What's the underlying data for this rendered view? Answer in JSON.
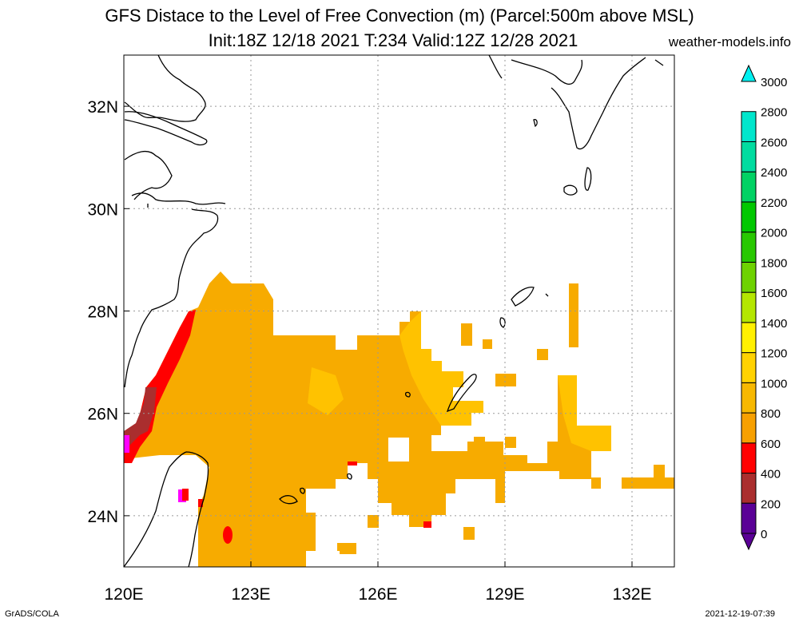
{
  "title_line1": "GFS Distace to the Level of Free Convection (m) (Parcel:500m above MSL)",
  "title_line2": "Init:18Z 12/18 2021 T:234 Valid:12Z 12/28 2021",
  "site": "weather-models.info",
  "footer_left": "GrADS/COLA",
  "footer_right": "2021-12-19-07:39",
  "map": {
    "lon_range": [
      120,
      133
    ],
    "lat_range": [
      23,
      33
    ],
    "lon_ticks": [
      {
        "value": 120,
        "label": "120E"
      },
      {
        "value": 123,
        "label": "123E"
      },
      {
        "value": 126,
        "label": "126E"
      },
      {
        "value": 129,
        "label": "129E"
      },
      {
        "value": 132,
        "label": "132E"
      }
    ],
    "lat_ticks": [
      {
        "value": 24,
        "label": "24N"
      },
      {
        "value": 26,
        "label": "26N"
      },
      {
        "value": 28,
        "label": "28N"
      },
      {
        "value": 30,
        "label": "30N"
      },
      {
        "value": 32,
        "label": "32N"
      }
    ],
    "grid": true,
    "dominant_field_color": "#f7ab00"
  },
  "colorbar": {
    "levels": [
      "0",
      "200",
      "400",
      "600",
      "800",
      "1000",
      "1200",
      "1400",
      "1600",
      "1800",
      "2000",
      "2200",
      "2400",
      "2600",
      "2800",
      "3000"
    ],
    "colors": [
      "#5a0096",
      "#ff00ff",
      "#aa2e2e",
      "#ff0000",
      "#f7a000",
      "#f7b800",
      "#ffd200",
      "#fff000",
      "#b4e600",
      "#6ed200",
      "#28c800",
      "#00c800",
      "#00d264",
      "#00dca0",
      "#00e6cc",
      "#00f0f0"
    ]
  }
}
